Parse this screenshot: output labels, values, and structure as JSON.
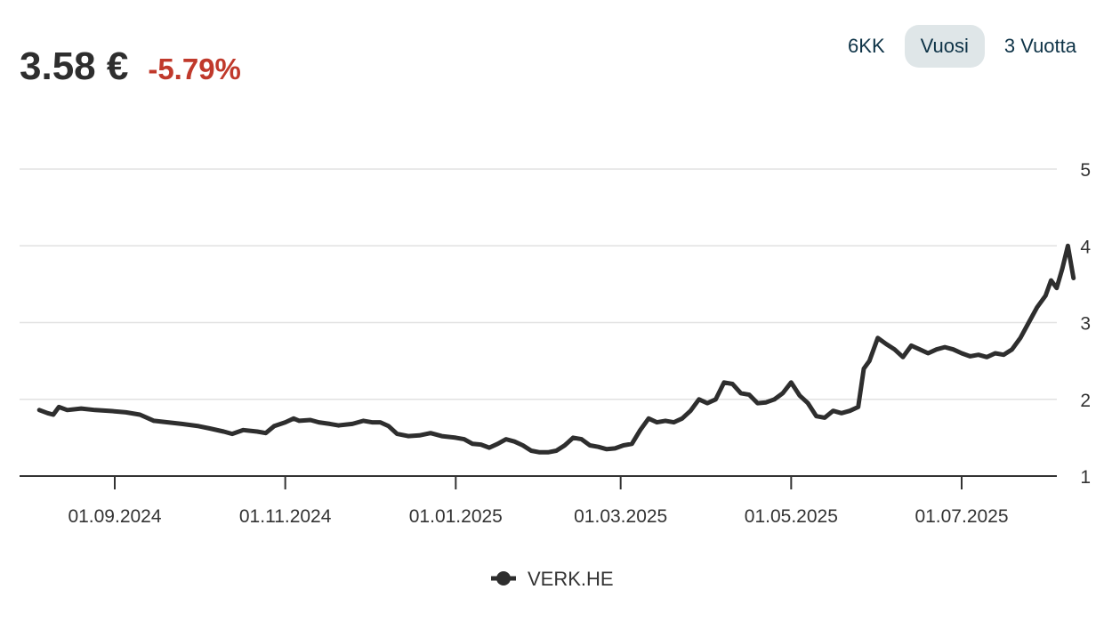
{
  "header": {
    "price": "3.58 €",
    "change": "-5.79%",
    "change_color": "#c0392b"
  },
  "range_tabs": [
    {
      "label": "6KK",
      "active": false
    },
    {
      "label": "Vuosi",
      "active": true
    },
    {
      "label": "3 Vuotta",
      "active": false
    }
  ],
  "chart_data": {
    "type": "line",
    "title": "",
    "xlabel": "",
    "ylabel": "",
    "ylim": [
      1,
      5
    ],
    "yticks": [
      "1",
      "2",
      "3",
      "4",
      "5"
    ],
    "xticks": [
      {
        "date": "2024-09-01",
        "label": "01.09.2024"
      },
      {
        "date": "2024-11-01",
        "label": "01.11.2024"
      },
      {
        "date": "2025-01-01",
        "label": "01.01.2025"
      },
      {
        "date": "2025-03-01",
        "label": "01.03.2025"
      },
      {
        "date": "2025-05-01",
        "label": "01.05.2025"
      },
      {
        "date": "2025-07-01",
        "label": "01.07.2025"
      }
    ],
    "grid": true,
    "legend": "bottom-center",
    "series": [
      {
        "name": "VERK.HE",
        "color": "#2e2e2e",
        "points": [
          [
            "2024-08-05",
            1.86
          ],
          [
            "2024-08-08",
            1.82
          ],
          [
            "2024-08-10",
            1.8
          ],
          [
            "2024-08-12",
            1.9
          ],
          [
            "2024-08-15",
            1.86
          ],
          [
            "2024-08-20",
            1.88
          ],
          [
            "2024-08-25",
            1.86
          ],
          [
            "2024-08-30",
            1.85
          ],
          [
            "2024-09-05",
            1.83
          ],
          [
            "2024-09-10",
            1.8
          ],
          [
            "2024-09-15",
            1.72
          ],
          [
            "2024-09-20",
            1.7
          ],
          [
            "2024-09-25",
            1.68
          ],
          [
            "2024-10-01",
            1.65
          ],
          [
            "2024-10-05",
            1.62
          ],
          [
            "2024-10-10",
            1.58
          ],
          [
            "2024-10-13",
            1.55
          ],
          [
            "2024-10-17",
            1.6
          ],
          [
            "2024-10-22",
            1.58
          ],
          [
            "2024-10-25",
            1.56
          ],
          [
            "2024-10-28",
            1.65
          ],
          [
            "2024-11-01",
            1.7
          ],
          [
            "2024-11-04",
            1.75
          ],
          [
            "2024-11-06",
            1.72
          ],
          [
            "2024-11-10",
            1.73
          ],
          [
            "2024-11-13",
            1.7
          ],
          [
            "2024-11-17",
            1.68
          ],
          [
            "2024-11-20",
            1.66
          ],
          [
            "2024-11-25",
            1.68
          ],
          [
            "2024-11-29",
            1.72
          ],
          [
            "2024-12-02",
            1.7
          ],
          [
            "2024-12-05",
            1.7
          ],
          [
            "2024-12-08",
            1.65
          ],
          [
            "2024-12-11",
            1.55
          ],
          [
            "2024-12-15",
            1.52
          ],
          [
            "2024-12-19",
            1.53
          ],
          [
            "2024-12-23",
            1.56
          ],
          [
            "2024-12-27",
            1.52
          ],
          [
            "2025-01-01",
            1.5
          ],
          [
            "2025-01-04",
            1.48
          ],
          [
            "2025-01-07",
            1.42
          ],
          [
            "2025-01-10",
            1.41
          ],
          [
            "2025-01-13",
            1.37
          ],
          [
            "2025-01-16",
            1.42
          ],
          [
            "2025-01-19",
            1.48
          ],
          [
            "2025-01-22",
            1.45
          ],
          [
            "2025-01-25",
            1.4
          ],
          [
            "2025-01-28",
            1.33
          ],
          [
            "2025-01-31",
            1.31
          ],
          [
            "2025-02-03",
            1.31
          ],
          [
            "2025-02-06",
            1.33
          ],
          [
            "2025-02-09",
            1.4
          ],
          [
            "2025-02-12",
            1.5
          ],
          [
            "2025-02-15",
            1.48
          ],
          [
            "2025-02-18",
            1.4
          ],
          [
            "2025-02-21",
            1.38
          ],
          [
            "2025-02-24",
            1.35
          ],
          [
            "2025-02-27",
            1.36
          ],
          [
            "2025-03-02",
            1.4
          ],
          [
            "2025-03-05",
            1.42
          ],
          [
            "2025-03-08",
            1.6
          ],
          [
            "2025-03-11",
            1.75
          ],
          [
            "2025-03-14",
            1.7
          ],
          [
            "2025-03-17",
            1.72
          ],
          [
            "2025-03-20",
            1.7
          ],
          [
            "2025-03-23",
            1.75
          ],
          [
            "2025-03-26",
            1.85
          ],
          [
            "2025-03-29",
            2.0
          ],
          [
            "2025-04-01",
            1.95
          ],
          [
            "2025-04-04",
            2.0
          ],
          [
            "2025-04-07",
            2.22
          ],
          [
            "2025-04-10",
            2.2
          ],
          [
            "2025-04-13",
            2.08
          ],
          [
            "2025-04-16",
            2.06
          ],
          [
            "2025-04-19",
            1.95
          ],
          [
            "2025-04-22",
            1.96
          ],
          [
            "2025-04-25",
            2.0
          ],
          [
            "2025-04-28",
            2.08
          ],
          [
            "2025-05-01",
            2.22
          ],
          [
            "2025-05-04",
            2.05
          ],
          [
            "2025-05-07",
            1.95
          ],
          [
            "2025-05-10",
            1.78
          ],
          [
            "2025-05-13",
            1.76
          ],
          [
            "2025-05-16",
            1.85
          ],
          [
            "2025-05-19",
            1.82
          ],
          [
            "2025-05-22",
            1.85
          ],
          [
            "2025-05-25",
            1.9
          ],
          [
            "2025-05-27",
            2.4
          ],
          [
            "2025-05-29",
            2.5
          ],
          [
            "2025-06-01",
            2.8
          ],
          [
            "2025-06-04",
            2.72
          ],
          [
            "2025-06-07",
            2.65
          ],
          [
            "2025-06-10",
            2.55
          ],
          [
            "2025-06-13",
            2.7
          ],
          [
            "2025-06-16",
            2.65
          ],
          [
            "2025-06-19",
            2.6
          ],
          [
            "2025-06-22",
            2.65
          ],
          [
            "2025-06-25",
            2.68
          ],
          [
            "2025-06-28",
            2.65
          ],
          [
            "2025-07-01",
            2.6
          ],
          [
            "2025-07-04",
            2.56
          ],
          [
            "2025-07-07",
            2.58
          ],
          [
            "2025-07-10",
            2.55
          ],
          [
            "2025-07-13",
            2.6
          ],
          [
            "2025-07-16",
            2.58
          ],
          [
            "2025-07-19",
            2.65
          ],
          [
            "2025-07-22",
            2.8
          ],
          [
            "2025-07-25",
            3.0
          ],
          [
            "2025-07-28",
            3.2
          ],
          [
            "2025-07-31",
            3.35
          ],
          [
            "2025-08-02",
            3.55
          ],
          [
            "2025-08-04",
            3.45
          ],
          [
            "2025-08-06",
            3.7
          ],
          [
            "2025-08-08",
            4.0
          ],
          [
            "2025-08-10",
            3.58
          ]
        ]
      }
    ]
  }
}
